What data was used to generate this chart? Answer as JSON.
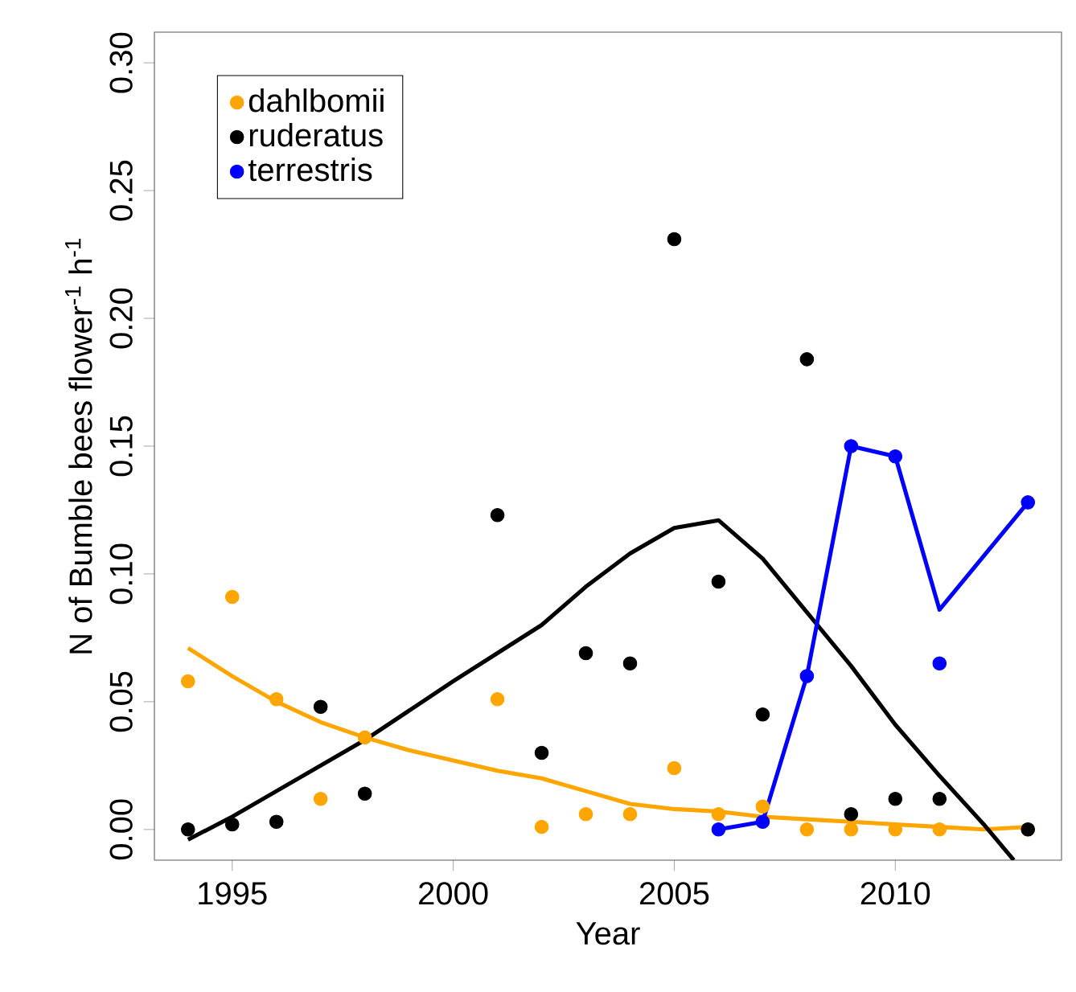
{
  "chart_data": {
    "type": "scatter",
    "xlabel": "Year",
    "ylabel": "N of Bumble bees flower$^{-1}$ h$^{-1}$",
    "xlim": [
      1993.24,
      2013.76
    ],
    "ylim": [
      -0.012,
      0.312
    ],
    "xticks": [
      1995,
      2000,
      2005,
      2010
    ],
    "yticks": [
      {
        "value": 0,
        "label": "0.00"
      },
      {
        "value": 0.05,
        "label": "0.05"
      },
      {
        "value": 0.1,
        "label": "0.10"
      },
      {
        "value": 0.15,
        "label": "0.15"
      },
      {
        "value": 0.2,
        "label": "0.20"
      },
      {
        "value": 0.25,
        "label": "0.25"
      },
      {
        "value": 0.3,
        "label": "0.30"
      }
    ],
    "legend": "top left",
    "marker": "circle",
    "series": [
      {
        "name": "dahlbomii",
        "color": "#ffa500",
        "x": [
          1994,
          1995,
          1996,
          1997,
          1998,
          2001,
          2002,
          2003,
          2004,
          2005,
          2006,
          2007,
          2008,
          2009,
          2010,
          2011,
          2013
        ],
        "values": [
          0.058,
          0.091,
          0.051,
          0.012,
          0.036,
          0.051,
          0.001,
          0.006,
          0.006,
          0.024,
          0.006,
          0.009,
          0.0,
          0.0,
          0.0,
          0.0,
          0.0
        ]
      },
      {
        "name": "ruderatus",
        "color": "#000000",
        "x": [
          1994,
          1995,
          1996,
          1997,
          1998,
          2001,
          2002,
          2003,
          2004,
          2005,
          2006,
          2007,
          2008,
          2009,
          2010,
          2011,
          2013
        ],
        "values": [
          0.0,
          0.002,
          0.003,
          0.048,
          0.014,
          0.123,
          0.03,
          0.069,
          0.065,
          0.231,
          0.097,
          0.045,
          0.184,
          0.006,
          0.012,
          0.012,
          0.0
        ]
      },
      {
        "name": "terrestris",
        "color": "#0000ff",
        "x": [
          2006,
          2007,
          2008,
          2009,
          2010,
          2011,
          2013
        ],
        "values": [
          0.0,
          0.003,
          0.06,
          0.15,
          0.146,
          0.065,
          0.128
        ]
      },
      {
        "type": "line",
        "marker": "none",
        "color": "#ffa500",
        "x": [
          1994,
          1995,
          1996,
          1997,
          1998,
          1999,
          2000,
          2001,
          2002,
          2003,
          2004,
          2005,
          2006,
          2007,
          2008,
          2009,
          2010,
          2011,
          2012,
          2013
        ],
        "values": [
          0.071,
          0.06,
          0.05,
          0.042,
          0.036,
          0.031,
          0.027,
          0.023,
          0.02,
          0.015,
          0.01,
          0.008,
          0.007,
          0.005,
          0.004,
          0.003,
          0.002,
          0.001,
          0.0,
          0.001
        ]
      },
      {
        "type": "line",
        "marker": "none",
        "color": "#000000",
        "x": [
          1994,
          1995,
          1996,
          1998,
          2000,
          2002,
          2003,
          2004,
          2005,
          2006,
          2007,
          2008,
          2009,
          2010,
          2011,
          2012,
          2012.68
        ],
        "values": [
          -0.004,
          0.005,
          0.015,
          0.035,
          0.058,
          0.08,
          0.095,
          0.108,
          0.118,
          0.121,
          0.106,
          0.085,
          0.064,
          0.041,
          0.021,
          0.002,
          -0.012
        ]
      },
      {
        "type": "line",
        "marker": "none",
        "color": "#0000ff",
        "x": [
          2006,
          2007,
          2008,
          2009,
          2010,
          2011,
          2013
        ],
        "values": [
          0.0,
          0.003,
          0.06,
          0.15,
          0.146,
          0.086,
          0.128
        ]
      }
    ]
  }
}
